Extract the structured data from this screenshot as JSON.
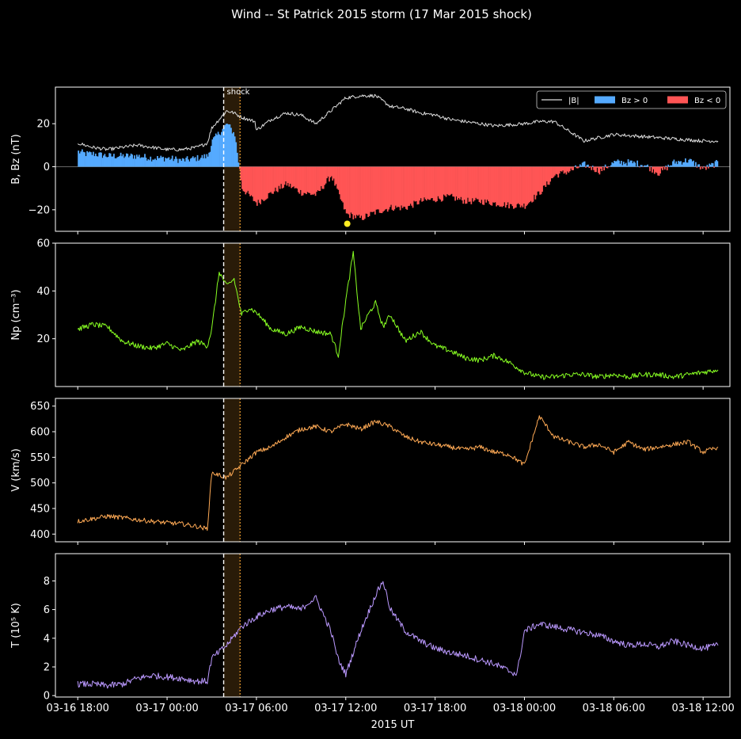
{
  "figure": {
    "title": "Wind -- St Patrick 2015 storm (17 Mar 2015 shock)",
    "xlabel": "2015 UT",
    "background": "#000000",
    "foreground": "#ffffff"
  },
  "chart_data": [
    {
      "type": "line",
      "panel": "magnetic-field",
      "ylabel": "B, Bz (nT)",
      "ylim": [
        -30,
        37
      ],
      "yticks": [
        -20,
        0,
        20
      ],
      "ytick_labels": [
        "−20",
        "0",
        "20"
      ],
      "x_unit": "hours since 2015-03-16 18:00 UT",
      "xlim": [
        -1.5,
        43.8
      ],
      "shock_label": "shock",
      "legend": {
        "position": "top-right",
        "entries": [
          {
            "label": "|B|",
            "color": "#dddddd",
            "kind": "line"
          },
          {
            "label": "Bz > 0",
            "color": "#55aaff",
            "kind": "fill"
          },
          {
            "label": "Bz < 0",
            "color": "#ff5555",
            "kind": "fill"
          }
        ]
      },
      "series": [
        {
          "name": "|B|",
          "color": "#dddddd",
          "x": [
            0,
            0.5,
            1,
            2,
            3,
            4,
            5,
            6,
            7,
            8,
            8.7,
            9,
            10,
            10.5,
            11,
            11.9,
            12,
            13,
            14,
            15,
            16,
            17,
            18,
            19,
            20,
            21,
            22,
            23,
            24,
            25,
            26,
            28,
            30,
            31,
            32,
            34,
            36,
            38,
            40,
            42,
            43
          ],
          "y": [
            11,
            10,
            9,
            8,
            9,
            10,
            9,
            8,
            8,
            9,
            11,
            18,
            26,
            25,
            23,
            21,
            17,
            22,
            25,
            24,
            20,
            26,
            32,
            33,
            33,
            28,
            27,
            25,
            24,
            22,
            21,
            19,
            20,
            21,
            21,
            12,
            15,
            14,
            13,
            12,
            12
          ]
        },
        {
          "name": "Bz",
          "color": "#ff5555",
          "x": [
            0,
            0.5,
            1,
            2,
            3,
            4,
            5,
            6,
            7,
            8,
            8.7,
            9,
            10,
            10.5,
            11,
            12,
            13,
            14,
            15,
            16,
            17,
            18,
            19,
            20,
            21,
            22,
            23,
            24,
            25,
            26,
            27,
            28,
            29,
            30,
            31,
            32,
            33,
            34,
            35,
            36,
            37,
            38,
            39,
            40,
            41,
            42,
            43
          ],
          "y": [
            7,
            6,
            6,
            5,
            5,
            5,
            4,
            4,
            3,
            4,
            5,
            12,
            20,
            15,
            -10,
            -17,
            -12,
            -8,
            -12,
            -13,
            -4,
            -22,
            -24,
            -21,
            -19,
            -19,
            -16,
            -15,
            -14,
            -16,
            -16,
            -17,
            -18,
            -18,
            -12,
            -4,
            -2,
            1,
            -2,
            2,
            2,
            1,
            -3,
            2,
            3,
            -1,
            2
          ]
        }
      ],
      "annotations": {
        "marker": {
          "x": 18.1,
          "y": -26.5,
          "color": "#ffee22"
        }
      }
    },
    {
      "type": "line",
      "panel": "density",
      "ylabel": "Np (cm⁻³)",
      "ylim": [
        0,
        60
      ],
      "yticks": [
        20,
        40,
        60
      ],
      "ytick_labels": [
        "20",
        "40",
        "60"
      ],
      "series": [
        {
          "name": "Np",
          "color": "#88ff22",
          "x": [
            0,
            1,
            2,
            3,
            4,
            5,
            6,
            7,
            8,
            8.7,
            9,
            9.5,
            10,
            10.5,
            11,
            11.5,
            12,
            13,
            14,
            15,
            16,
            17,
            17.5,
            18,
            18.5,
            19,
            19.5,
            20,
            20.5,
            21,
            22,
            23,
            24,
            25,
            26,
            27,
            28,
            29,
            30,
            31,
            32,
            33,
            34,
            35,
            36,
            37,
            38,
            39,
            40,
            41,
            42,
            43
          ],
          "y": [
            24,
            26,
            25,
            19,
            17,
            16,
            18,
            15,
            19,
            17,
            24,
            48,
            42,
            45,
            30,
            33,
            31,
            24,
            22,
            25,
            23,
            22,
            13,
            36,
            56,
            24,
            30,
            35,
            25,
            30,
            19,
            23,
            17,
            15,
            12,
            11,
            13,
            10,
            6,
            4,
            4,
            5,
            5,
            4,
            5,
            4,
            5,
            5,
            4,
            5,
            6,
            7
          ]
        }
      ]
    },
    {
      "type": "line",
      "panel": "velocity",
      "ylabel": "V (km/s)",
      "ylim": [
        385,
        665
      ],
      "yticks": [
        400,
        450,
        500,
        550,
        600,
        650
      ],
      "ytick_labels": [
        "400",
        "450",
        "500",
        "550",
        "600",
        "650"
      ],
      "series": [
        {
          "name": "V",
          "color": "#ffaa55",
          "x": [
            0,
            1,
            2,
            3,
            4,
            5,
            6,
            7,
            8,
            8.7,
            9,
            10,
            11,
            12,
            13,
            14,
            15,
            16,
            17,
            18,
            19,
            20,
            21,
            22,
            23,
            24,
            25,
            26,
            27,
            28,
            29,
            30,
            31,
            32,
            33,
            34,
            35,
            36,
            37,
            38,
            39,
            40,
            41,
            42,
            43
          ],
          "y": [
            425,
            430,
            435,
            432,
            428,
            425,
            422,
            420,
            415,
            410,
            520,
            510,
            535,
            560,
            570,
            590,
            605,
            610,
            600,
            615,
            605,
            620,
            610,
            590,
            580,
            575,
            570,
            565,
            570,
            560,
            555,
            535,
            630,
            590,
            580,
            570,
            575,
            560,
            580,
            565,
            570,
            575,
            580,
            560,
            570
          ]
        }
      ]
    },
    {
      "type": "line",
      "panel": "temperature",
      "ylabel": "T (10⁵ K)",
      "ylim": [
        -0.1,
        9.9
      ],
      "yticks": [
        0,
        2,
        4,
        6,
        8
      ],
      "ytick_labels": [
        "0",
        "2",
        "4",
        "6",
        "8"
      ],
      "xticks": [
        0,
        6,
        12,
        18,
        24,
        30,
        36,
        42
      ],
      "xtick_labels": [
        "03-16 18:00",
        "03-17 00:00",
        "03-17 06:00",
        "03-17 12:00",
        "03-17 18:00",
        "03-18 00:00",
        "03-18 06:00",
        "03-18 12:00"
      ],
      "series": [
        {
          "name": "T",
          "color": "#bb99ff",
          "x": [
            0,
            1,
            2,
            3,
            4,
            5,
            6,
            7,
            8,
            8.7,
            9,
            10,
            11,
            12,
            13,
            14,
            15,
            15.5,
            16,
            17,
            17.5,
            18,
            19,
            20,
            20.5,
            21,
            22,
            23,
            24,
            25,
            26,
            27,
            28,
            29,
            29.5,
            30,
            31,
            32,
            33,
            34,
            35,
            36,
            37,
            38,
            39,
            40,
            41,
            42,
            43
          ],
          "y": [
            0.8,
            0.8,
            0.7,
            0.8,
            1.2,
            1.4,
            1.3,
            1.2,
            1.0,
            1.0,
            2.6,
            3.5,
            4.8,
            5.5,
            6.0,
            6.2,
            6.0,
            6.5,
            6.8,
            4.5,
            2.5,
            1.5,
            4.5,
            7.0,
            8.0,
            6.0,
            4.5,
            3.8,
            3.3,
            3.0,
            2.8,
            2.5,
            2.2,
            1.7,
            1.5,
            4.5,
            5.0,
            4.8,
            4.6,
            4.4,
            4.2,
            3.8,
            3.5,
            3.6,
            3.4,
            3.8,
            3.5,
            3.3,
            3.5
          ]
        }
      ]
    }
  ],
  "shock": {
    "x": 9.8,
    "line_color": "#ffffff",
    "window_end_x": 10.9,
    "window_color": "#ffaa33"
  }
}
